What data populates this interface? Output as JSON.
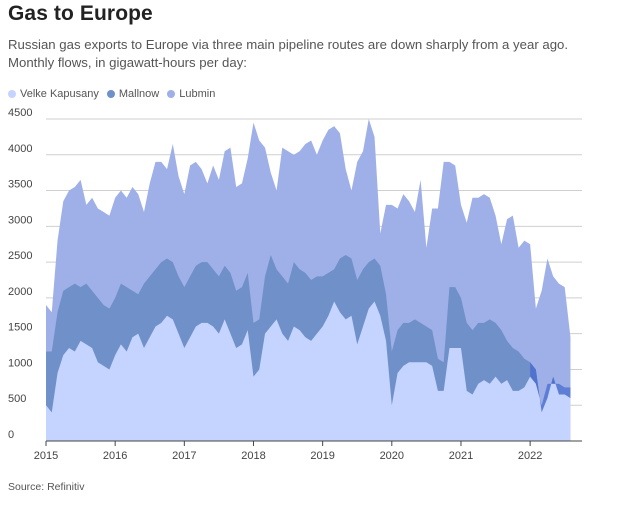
{
  "header": {
    "title": "Gas to Europe",
    "subtitle": "Russian gas exports to Europe via three main pipeline routes are down sharply from a year ago. Monthly flows, in gigawatt-hours per day:"
  },
  "footer": {
    "source": "Source: Refinitiv"
  },
  "colors": {
    "velke_kapusany": "#c5d3ff",
    "mallnow": "#6f90c9",
    "lubmin": "#9fb0e8",
    "mallnow_dark_band": "#4b6fce",
    "grid": "#cfcfcf",
    "axis": "#444444"
  },
  "chart_data": {
    "type": "area",
    "stacked": false,
    "title": "Gas to Europe",
    "subtitle": "Russian gas exports to Europe via three main pipeline routes are down sharply from a year ago. Monthly flows, in gigawatt-hours per day:",
    "xlabel": "",
    "ylabel": "",
    "xlim": [
      2015.0,
      2022.75
    ],
    "ylim": [
      0,
      4500
    ],
    "grid": true,
    "legend_placement": "top-left",
    "x_ticks": [
      "2015",
      "2016",
      "2017",
      "2018",
      "2019",
      "2020",
      "2021",
      "2022"
    ],
    "y_ticks": [
      0,
      500,
      1000,
      1500,
      2000,
      2500,
      3000,
      3500,
      4000,
      4500
    ],
    "series": [
      {
        "name": "Velke Kapusany",
        "color": "#c5d3ff",
        "values": [
          500,
          400,
          950,
          1200,
          1300,
          1250,
          1400,
          1350,
          1300,
          1100,
          1050,
          1000,
          1200,
          1350,
          1250,
          1450,
          1500,
          1300,
          1450,
          1600,
          1650,
          1750,
          1700,
          1500,
          1300,
          1450,
          1600,
          1650,
          1650,
          1600,
          1500,
          1700,
          1500,
          1300,
          1350,
          1550,
          900,
          1000,
          1500,
          1600,
          1700,
          1500,
          1400,
          1600,
          1550,
          1450,
          1400,
          1500,
          1600,
          1750,
          1950,
          1800,
          1700,
          1750,
          1350,
          1600,
          1850,
          1950,
          1750,
          1400,
          500,
          950,
          1050,
          1100,
          1100,
          1100,
          1100,
          1050,
          700,
          700,
          1300,
          1300,
          1300,
          700,
          650,
          800,
          850,
          800,
          900,
          800,
          850,
          700,
          700,
          750,
          900,
          800,
          500,
          800,
          800,
          800,
          750,
          750
        ]
      },
      {
        "name": "Mallnow",
        "color": "#6f90c9",
        "values": [
          1250,
          1250,
          1800,
          2100,
          2150,
          2200,
          2150,
          2200,
          2100,
          2000,
          1900,
          1850,
          2000,
          2200,
          2150,
          2100,
          2050,
          2200,
          2300,
          2400,
          2500,
          2550,
          2500,
          2300,
          2150,
          2300,
          2450,
          2500,
          2500,
          2400,
          2300,
          2450,
          2350,
          2100,
          2150,
          2350,
          1650,
          1700,
          2300,
          2600,
          2400,
          2300,
          2200,
          2500,
          2400,
          2350,
          2250,
          2300,
          2300,
          2350,
          2400,
          2550,
          2600,
          2550,
          2250,
          2400,
          2500,
          2550,
          2450,
          2050,
          1250,
          1550,
          1650,
          1650,
          1700,
          1650,
          1600,
          1550,
          1150,
          1100,
          2150,
          2150,
          2000,
          1650,
          1550,
          1650,
          1650,
          1700,
          1650,
          1550,
          1400,
          1300,
          1250,
          1150,
          1100,
          1000,
          400,
          600,
          900,
          650,
          650,
          600
        ]
      },
      {
        "name": "Lubmin",
        "color": "#9fb0e8",
        "values": [
          1900,
          1800,
          2800,
          3350,
          3500,
          3550,
          3650,
          3300,
          3400,
          3250,
          3200,
          3150,
          3400,
          3500,
          3400,
          3550,
          3450,
          3200,
          3600,
          3900,
          3900,
          3800,
          4150,
          3700,
          3450,
          3850,
          3900,
          3800,
          3600,
          3850,
          3650,
          4050,
          4100,
          3550,
          3600,
          3950,
          4450,
          4200,
          4100,
          3750,
          3500,
          4100,
          4050,
          4000,
          4050,
          4150,
          4200,
          4000,
          4200,
          4350,
          4400,
          4300,
          3800,
          3500,
          3900,
          4050,
          4500,
          4250,
          2900,
          3300,
          3300,
          3250,
          3450,
          3350,
          3200,
          3650,
          2700,
          3250,
          3250,
          3900,
          3900,
          3850,
          3300,
          3050,
          3400,
          3400,
          3450,
          3400,
          3150,
          2750,
          3100,
          3150,
          2700,
          2800,
          2750,
          1850,
          2100,
          2550,
          2300,
          2200,
          2150,
          1450
        ]
      }
    ]
  }
}
